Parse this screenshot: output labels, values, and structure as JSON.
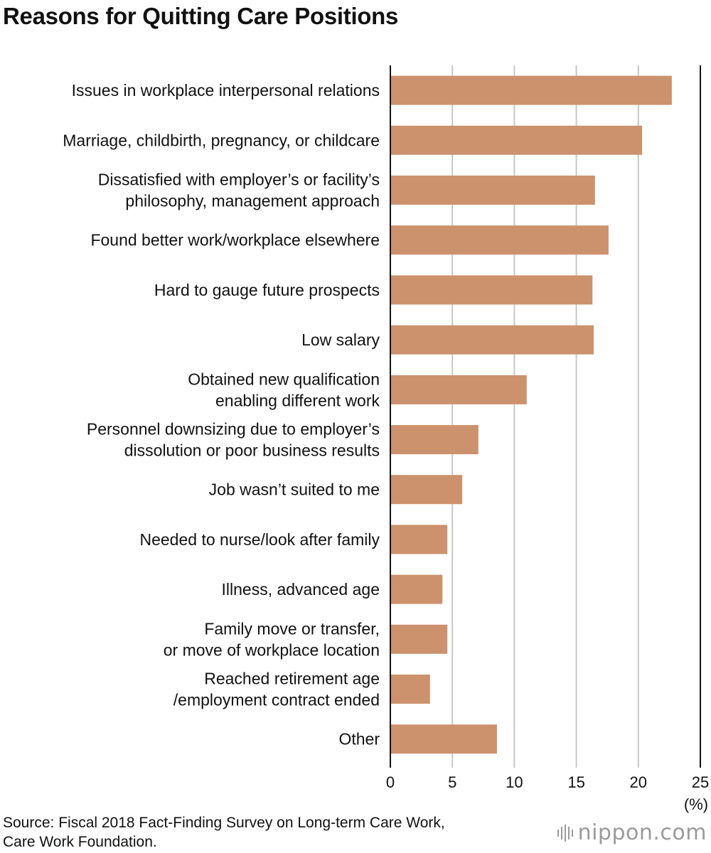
{
  "title": "Reasons for Quitting Care Positions",
  "chart_data": {
    "type": "bar",
    "orientation": "horizontal",
    "categories": [
      [
        "Issues in workplace interpersonal relations"
      ],
      [
        "Marriage, childbirth, pregnancy, or childcare"
      ],
      [
        "Dissatisfied with employer’s or facility’s",
        "philosophy, management approach"
      ],
      [
        "Found better work/workplace elsewhere"
      ],
      [
        "Hard to gauge future prospects"
      ],
      [
        "Low salary"
      ],
      [
        "Obtained new qualification",
        "enabling different work"
      ],
      [
        "Personnel downsizing due to employer’s",
        "dissolution or poor business results"
      ],
      [
        "Job wasn’t suited to me"
      ],
      [
        "Needed to nurse/look after family"
      ],
      [
        "Illness, advanced age"
      ],
      [
        "Family move or transfer,",
        "or move of workplace location"
      ],
      [
        "Reached retirement age",
        "/employment contract ended"
      ],
      [
        "Other"
      ]
    ],
    "values": [
      22.7,
      20.3,
      16.5,
      17.6,
      16.3,
      16.4,
      11.0,
      7.1,
      5.8,
      4.6,
      4.2,
      4.6,
      3.2,
      8.6
    ],
    "xlim": [
      0,
      25
    ],
    "xticks": [
      0,
      5,
      10,
      15,
      20,
      25
    ],
    "xlabel": "(%)",
    "ylabel": "",
    "grid": true,
    "bar_color": "#cc926d",
    "grid_color": "#c8c8c8"
  },
  "source": {
    "line1": "Source: Fiscal 2018 Fact-Finding Survey on Long-term Care Work,",
    "line2": "Care Work Foundation."
  },
  "brand": {
    "name": "nippon.com",
    "icon": "nippon-logo-icon"
  }
}
